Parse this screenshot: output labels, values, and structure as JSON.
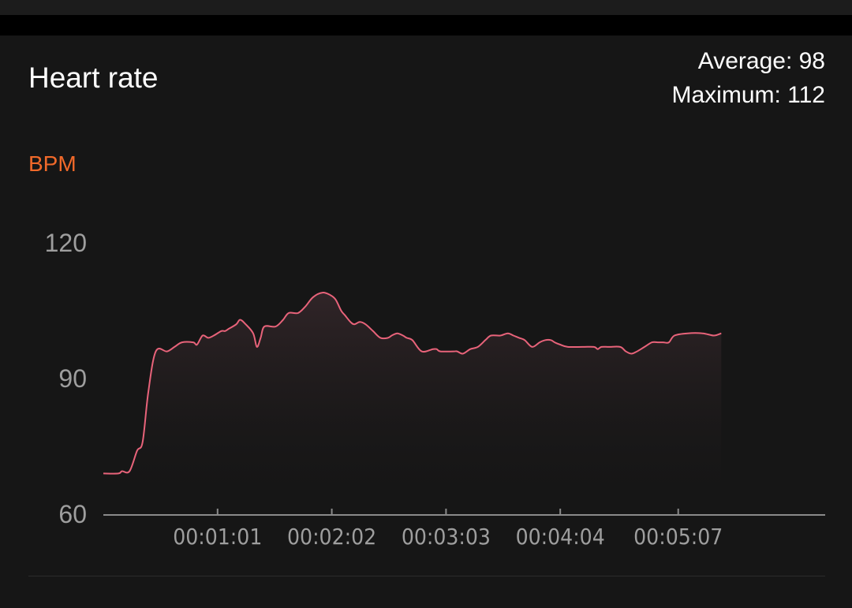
{
  "card": {
    "title": "Heart rate",
    "average_label": "Average: 98",
    "maximum_label": "Maximum: 112",
    "unit": "BPM"
  },
  "colors": {
    "line": "#e8637a",
    "unit": "#f0692a",
    "axis": "#8a8a8a",
    "tick_text": "#9e9e9e"
  },
  "chart_data": {
    "type": "area",
    "title": "Heart rate",
    "ylabel": "BPM",
    "ylim": [
      60,
      120
    ],
    "yticks": [
      60,
      90,
      120
    ],
    "xlim": [
      0,
      380
    ],
    "xticks": [
      {
        "t": 61,
        "label": "00:01:01"
      },
      {
        "t": 122,
        "label": "00:02:02"
      },
      {
        "t": 183,
        "label": "00:03:03"
      },
      {
        "t": 244,
        "label": "00:04:04"
      },
      {
        "t": 307,
        "label": "00:05:07"
      }
    ],
    "grid": false,
    "series": [
      {
        "values": [
          [
            0,
            69
          ],
          [
            8,
            69
          ],
          [
            10,
            69.5
          ],
          [
            14,
            69.5
          ],
          [
            18,
            74
          ],
          [
            21,
            76
          ],
          [
            24,
            87
          ],
          [
            28,
            96
          ],
          [
            34,
            96
          ],
          [
            38,
            97
          ],
          [
            42,
            98
          ],
          [
            48,
            98
          ],
          [
            50,
            97.5
          ],
          [
            53,
            99.5
          ],
          [
            56,
            99
          ],
          [
            59,
            99.5
          ],
          [
            63,
            100.5
          ],
          [
            65,
            100.5
          ],
          [
            67,
            101
          ],
          [
            71,
            102
          ],
          [
            73,
            103
          ],
          [
            76,
            102
          ],
          [
            80,
            100
          ],
          [
            82,
            97
          ],
          [
            84,
            99
          ],
          [
            86,
            101.5
          ],
          [
            92,
            101.5
          ],
          [
            96,
            103
          ],
          [
            99,
            104.5
          ],
          [
            104,
            104.5
          ],
          [
            108,
            106
          ],
          [
            112,
            108
          ],
          [
            117,
            109
          ],
          [
            121,
            108.5
          ],
          [
            124,
            107.5
          ],
          [
            127,
            105
          ],
          [
            129,
            104
          ],
          [
            132,
            102.5
          ],
          [
            134,
            102
          ],
          [
            137,
            102.5
          ],
          [
            140,
            102
          ],
          [
            144,
            100.5
          ],
          [
            148,
            99
          ],
          [
            152,
            99
          ],
          [
            154,
            99.5
          ],
          [
            157,
            100
          ],
          [
            160,
            99.5
          ],
          [
            162,
            99
          ],
          [
            165,
            98.5
          ],
          [
            170,
            96
          ],
          [
            176,
            96.5
          ],
          [
            178,
            96.5
          ],
          [
            180,
            96
          ],
          [
            187,
            96
          ],
          [
            189,
            96
          ],
          [
            192,
            95.5
          ],
          [
            196,
            96.5
          ],
          [
            200,
            97
          ],
          [
            204,
            98.5
          ],
          [
            207,
            99.5
          ],
          [
            212,
            99.5
          ],
          [
            216,
            100
          ],
          [
            219,
            99.5
          ],
          [
            222,
            99
          ],
          [
            225,
            98.5
          ],
          [
            229,
            97
          ],
          [
            233,
            98
          ],
          [
            236,
            98.5
          ],
          [
            239,
            98.5
          ],
          [
            241,
            98
          ],
          [
            244,
            97.5
          ],
          [
            248,
            97
          ],
          [
            256,
            97
          ],
          [
            262,
            97
          ],
          [
            264,
            96.5
          ],
          [
            266,
            97
          ],
          [
            270,
            97
          ],
          [
            276,
            97
          ],
          [
            279,
            96
          ],
          [
            282,
            95.5
          ],
          [
            285,
            96
          ],
          [
            289,
            97
          ],
          [
            293,
            98
          ],
          [
            296,
            98
          ],
          [
            299,
            98
          ],
          [
            302,
            98
          ],
          [
            305,
            99.5
          ],
          [
            312,
            100
          ],
          [
            320,
            100
          ],
          [
            326,
            99.5
          ],
          [
            330,
            100
          ]
        ]
      }
    ]
  }
}
